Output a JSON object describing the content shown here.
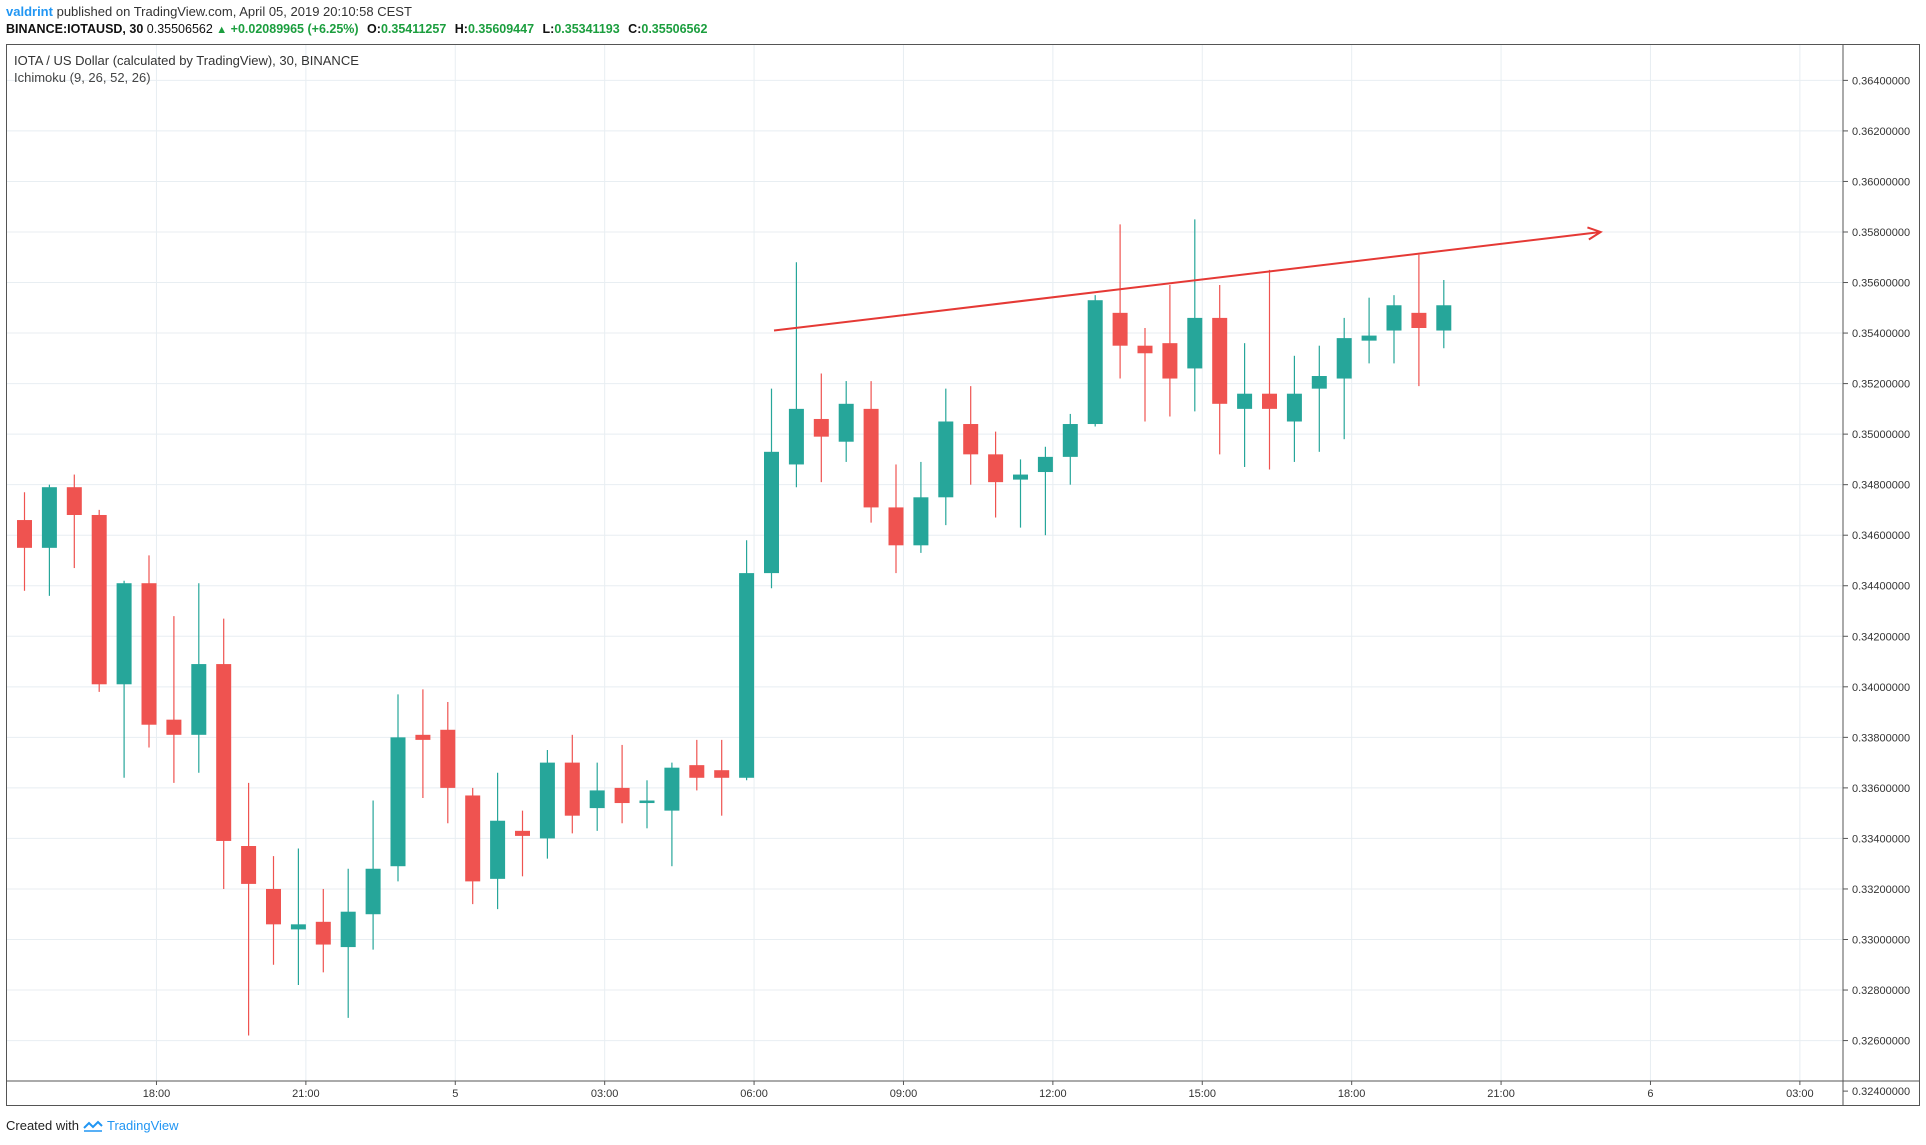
{
  "header": {
    "author": "valdrint",
    "published_text": "published on TradingView.com, April 05, 2019 20:10:58 CEST"
  },
  "quote": {
    "symbol": "BINANCE:IOTAUSD, 30",
    "last": "0.35506562",
    "change": "+0.02089965 (+6.25%)",
    "o_label": "O:",
    "o_value": "0.35411257",
    "h_label": "H:",
    "h_value": "0.35609447",
    "l_label": "L:",
    "l_value": "0.35341193",
    "c_label": "C:",
    "c_value": "0.35506562"
  },
  "legend": {
    "title": "IOTA / US Dollar (calculated by TradingView), 30, BINANCE",
    "indicator": "Ichimoku (9, 26, 52, 26)"
  },
  "footer": {
    "created_with": "Created with",
    "brand": "TradingView"
  },
  "colors": {
    "up": "#26a69a",
    "down": "#ef5350",
    "grid": "#e8eef2",
    "trendline": "#e53935"
  },
  "chart_data": {
    "type": "candlestick",
    "title": "IOTA / US Dollar (calculated by TradingView), 30, BINANCE",
    "ylim": [
      0.3244,
      0.3654
    ],
    "y_ticks": [
      "0.36400000",
      "0.36200000",
      "0.36000000",
      "0.35800000",
      "0.35600000",
      "0.35400000",
      "0.35200000",
      "0.35000000",
      "0.34800000",
      "0.34600000",
      "0.34400000",
      "0.34200000",
      "0.34000000",
      "0.33800000",
      "0.33600000",
      "0.33400000",
      "0.33200000",
      "0.33000000",
      "0.32800000",
      "0.32600000",
      "0.32400000"
    ],
    "x_ticks": [
      {
        "label": "18:00",
        "index": 5.3
      },
      {
        "label": "21:00",
        "index": 11.3
      },
      {
        "label": "5",
        "index": 17.3
      },
      {
        "label": "03:00",
        "index": 23.3
      },
      {
        "label": "06:00",
        "index": 29.3
      },
      {
        "label": "09:00",
        "index": 35.3
      },
      {
        "label": "12:00",
        "index": 41.3
      },
      {
        "label": "15:00",
        "index": 47.3
      },
      {
        "label": "18:00",
        "index": 53.3
      },
      {
        "label": "21:00",
        "index": 59.3
      },
      {
        "label": "6",
        "index": 65.3
      },
      {
        "label": "03:00",
        "index": 71.3
      }
    ],
    "candles": [
      {
        "o": 0.3466,
        "h": 0.3477,
        "l": 0.3438,
        "c": 0.3455
      },
      {
        "o": 0.3455,
        "h": 0.348,
        "l": 0.3436,
        "c": 0.3479
      },
      {
        "o": 0.3479,
        "h": 0.3484,
        "l": 0.3447,
        "c": 0.3468
      },
      {
        "o": 0.3468,
        "h": 0.347,
        "l": 0.3398,
        "c": 0.3401
      },
      {
        "o": 0.3401,
        "h": 0.3442,
        "l": 0.3364,
        "c": 0.3441
      },
      {
        "o": 0.3441,
        "h": 0.3452,
        "l": 0.3376,
        "c": 0.3385
      },
      {
        "o": 0.3387,
        "h": 0.3428,
        "l": 0.3362,
        "c": 0.3381
      },
      {
        "o": 0.3381,
        "h": 0.3441,
        "l": 0.3366,
        "c": 0.3409
      },
      {
        "o": 0.3409,
        "h": 0.3427,
        "l": 0.332,
        "c": 0.3339
      },
      {
        "o": 0.3337,
        "h": 0.3362,
        "l": 0.3262,
        "c": 0.3322
      },
      {
        "o": 0.332,
        "h": 0.3333,
        "l": 0.329,
        "c": 0.3306
      },
      {
        "o": 0.3304,
        "h": 0.3336,
        "l": 0.3282,
        "c": 0.3306
      },
      {
        "o": 0.3307,
        "h": 0.332,
        "l": 0.3287,
        "c": 0.3298
      },
      {
        "o": 0.3297,
        "h": 0.3328,
        "l": 0.3269,
        "c": 0.3311
      },
      {
        "o": 0.331,
        "h": 0.3355,
        "l": 0.3296,
        "c": 0.3328
      },
      {
        "o": 0.3329,
        "h": 0.3397,
        "l": 0.3323,
        "c": 0.338
      },
      {
        "o": 0.3381,
        "h": 0.3399,
        "l": 0.3356,
        "c": 0.3379
      },
      {
        "o": 0.3383,
        "h": 0.3394,
        "l": 0.3346,
        "c": 0.336
      },
      {
        "o": 0.3357,
        "h": 0.336,
        "l": 0.3314,
        "c": 0.3323
      },
      {
        "o": 0.3324,
        "h": 0.3366,
        "l": 0.3312,
        "c": 0.3347
      },
      {
        "o": 0.3343,
        "h": 0.3351,
        "l": 0.3325,
        "c": 0.3341
      },
      {
        "o": 0.334,
        "h": 0.3375,
        "l": 0.3332,
        "c": 0.337
      },
      {
        "o": 0.337,
        "h": 0.3381,
        "l": 0.3342,
        "c": 0.3349
      },
      {
        "o": 0.3352,
        "h": 0.337,
        "l": 0.3343,
        "c": 0.3359
      },
      {
        "o": 0.336,
        "h": 0.3377,
        "l": 0.3346,
        "c": 0.3354
      },
      {
        "o": 0.3354,
        "h": 0.3363,
        "l": 0.3344,
        "c": 0.3355
      },
      {
        "o": 0.3351,
        "h": 0.337,
        "l": 0.3329,
        "c": 0.3368
      },
      {
        "o": 0.3369,
        "h": 0.3379,
        "l": 0.3359,
        "c": 0.3364
      },
      {
        "o": 0.3367,
        "h": 0.3379,
        "l": 0.3349,
        "c": 0.3364
      },
      {
        "o": 0.3364,
        "h": 0.3458,
        "l": 0.3363,
        "c": 0.3445
      },
      {
        "o": 0.3445,
        "h": 0.3518,
        "l": 0.3439,
        "c": 0.3493
      },
      {
        "o": 0.3488,
        "h": 0.3568,
        "l": 0.3479,
        "c": 0.351
      },
      {
        "o": 0.3506,
        "h": 0.3524,
        "l": 0.3481,
        "c": 0.3499
      },
      {
        "o": 0.3497,
        "h": 0.3521,
        "l": 0.3489,
        "c": 0.3512
      },
      {
        "o": 0.351,
        "h": 0.3521,
        "l": 0.3465,
        "c": 0.3471
      },
      {
        "o": 0.3471,
        "h": 0.3488,
        "l": 0.3445,
        "c": 0.3456
      },
      {
        "o": 0.3456,
        "h": 0.3489,
        "l": 0.3453,
        "c": 0.3475
      },
      {
        "o": 0.3475,
        "h": 0.3518,
        "l": 0.3464,
        "c": 0.3505
      },
      {
        "o": 0.3504,
        "h": 0.3519,
        "l": 0.348,
        "c": 0.3492
      },
      {
        "o": 0.3492,
        "h": 0.3501,
        "l": 0.3467,
        "c": 0.3481
      },
      {
        "o": 0.3482,
        "h": 0.349,
        "l": 0.3463,
        "c": 0.3484
      },
      {
        "o": 0.3485,
        "h": 0.3495,
        "l": 0.346,
        "c": 0.3491
      },
      {
        "o": 0.3491,
        "h": 0.3508,
        "l": 0.348,
        "c": 0.3504
      },
      {
        "o": 0.3504,
        "h": 0.3555,
        "l": 0.3503,
        "c": 0.3553
      },
      {
        "o": 0.3548,
        "h": 0.3583,
        "l": 0.3522,
        "c": 0.3535
      },
      {
        "o": 0.3535,
        "h": 0.3542,
        "l": 0.3505,
        "c": 0.3532
      },
      {
        "o": 0.3536,
        "h": 0.3559,
        "l": 0.3507,
        "c": 0.3522
      },
      {
        "o": 0.3526,
        "h": 0.3585,
        "l": 0.3509,
        "c": 0.3546
      },
      {
        "o": 0.3546,
        "h": 0.3559,
        "l": 0.3492,
        "c": 0.3512
      },
      {
        "o": 0.351,
        "h": 0.3536,
        "l": 0.3487,
        "c": 0.3516
      },
      {
        "o": 0.3516,
        "h": 0.3565,
        "l": 0.3486,
        "c": 0.351
      },
      {
        "o": 0.3505,
        "h": 0.3531,
        "l": 0.3489,
        "c": 0.3516
      },
      {
        "o": 0.3518,
        "h": 0.3535,
        "l": 0.3493,
        "c": 0.3523
      },
      {
        "o": 0.3522,
        "h": 0.3546,
        "l": 0.3498,
        "c": 0.3538
      },
      {
        "o": 0.3537,
        "h": 0.3554,
        "l": 0.3528,
        "c": 0.3539
      },
      {
        "o": 0.3541,
        "h": 0.3555,
        "l": 0.3528,
        "c": 0.3551
      },
      {
        "o": 0.3548,
        "h": 0.3571,
        "l": 0.3519,
        "c": 0.3542
      },
      {
        "o": 0.3541,
        "h": 0.3561,
        "l": 0.3534,
        "c": 0.3551
      }
    ],
    "trendline": {
      "x1": 30.1,
      "y1": 0.3541,
      "x2": 63.3,
      "y2": 0.358,
      "arrow": true
    },
    "grid": true
  }
}
